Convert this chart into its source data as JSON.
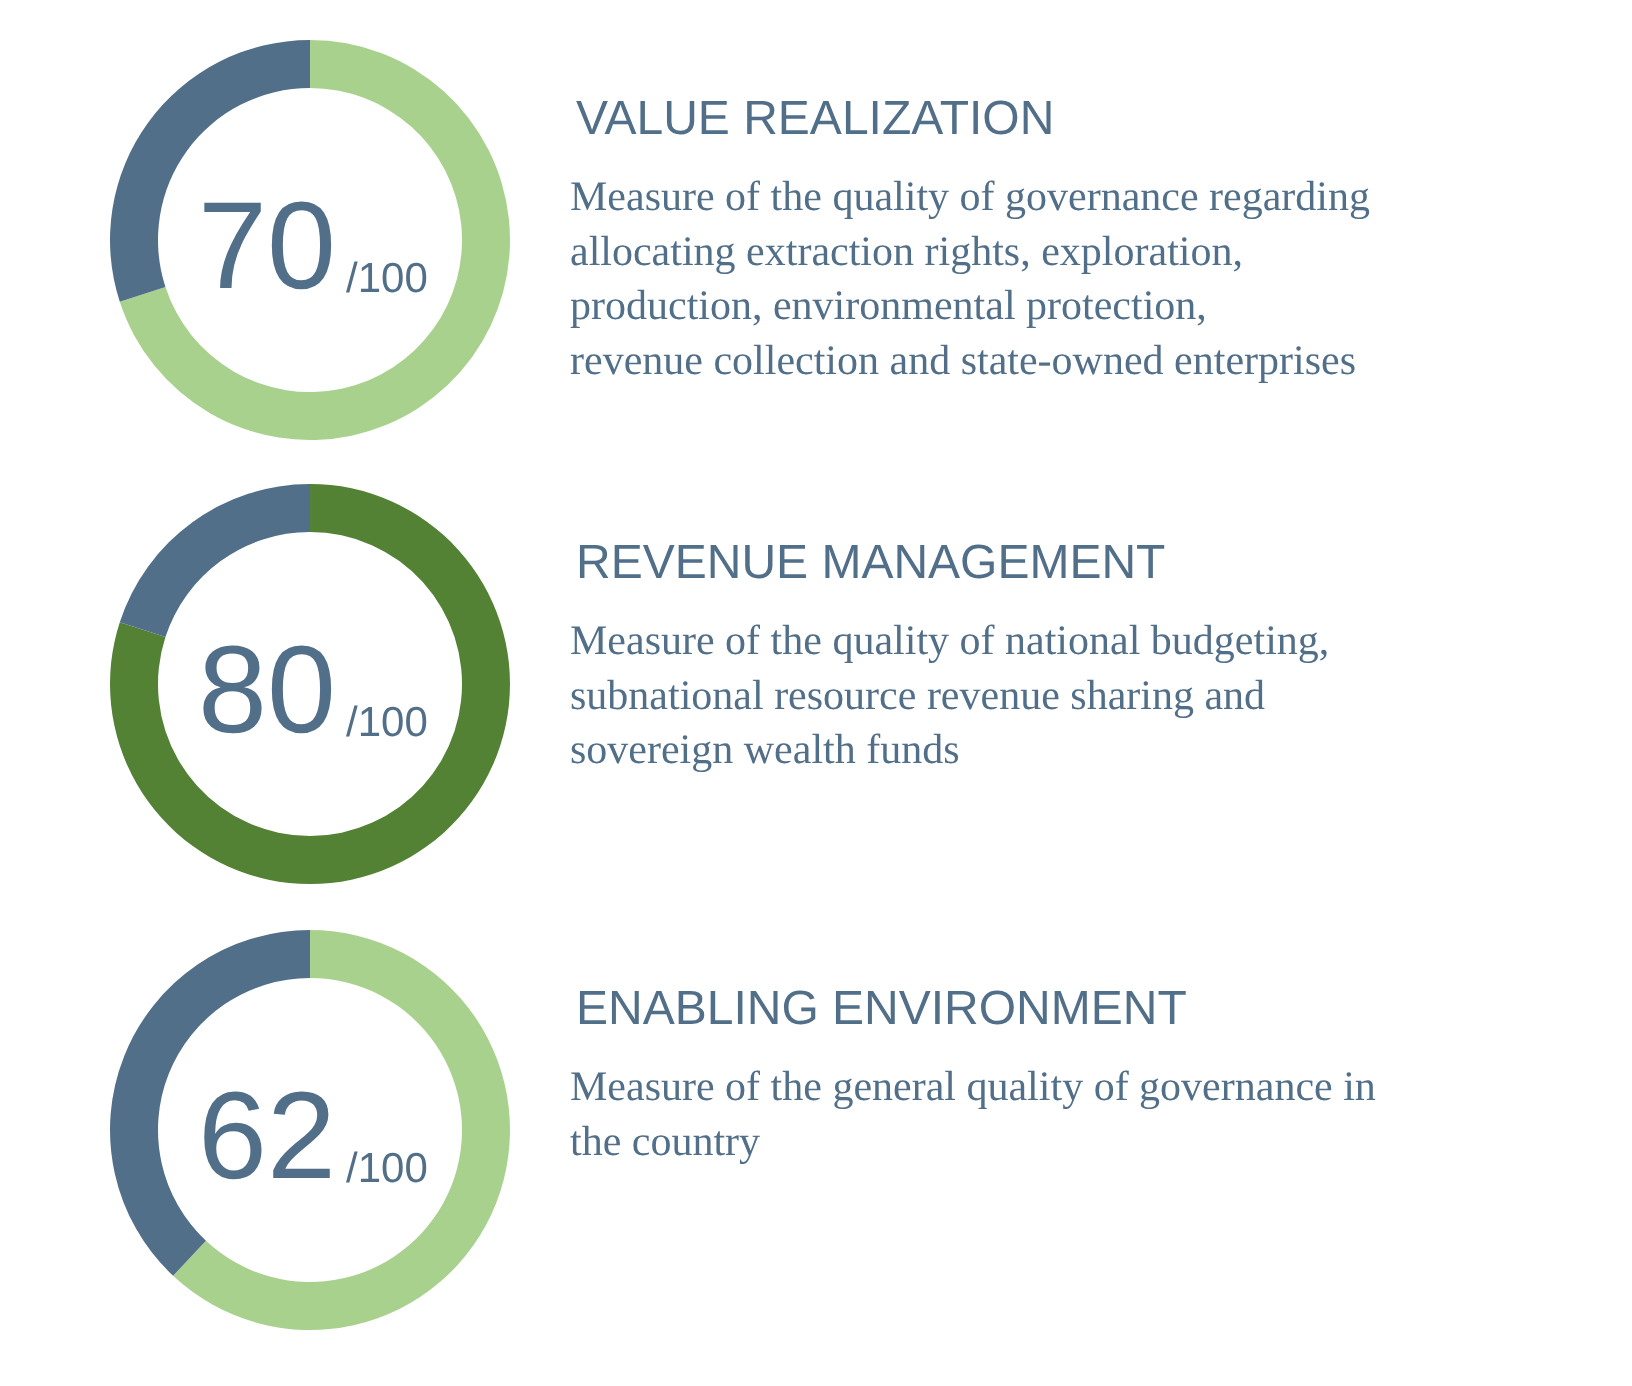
{
  "chart_data": [
    {
      "type": "donut",
      "title": "VALUE REALIZATION",
      "subtitle": "Measure of the quality of governance regarding\nallocating extraction rights, exploration,\nproduction, environmental protection,\nrevenue collection and state-owned enterprises",
      "categories": [
        null,
        null
      ],
      "values": [
        70,
        30
      ],
      "colors": [
        "#a9d18e",
        "#526f89"
      ],
      "annotations": [
        "70",
        "/100"
      ]
    },
    {
      "type": "donut",
      "title": "REVENUE MANAGEMENT",
      "subtitle": "Measure of the quality of national budgeting,\nsubnational resource revenue sharing and\nsovereign wealth funds",
      "categories": [
        null,
        null
      ],
      "values": [
        80,
        20
      ],
      "colors": [
        "#548235",
        "#526f89"
      ],
      "annotations": [
        "80",
        "/100"
      ]
    },
    {
      "type": "donut",
      "title": "ENABLING ENVIRONMENT",
      "subtitle": "Measure of the general quality of governance in\nthe country",
      "categories": [
        null,
        null
      ],
      "values": [
        62,
        38
      ],
      "colors": [
        "#a9d18e",
        "#526f89"
      ],
      "annotations": [
        "62",
        "/100"
      ]
    }
  ]
}
